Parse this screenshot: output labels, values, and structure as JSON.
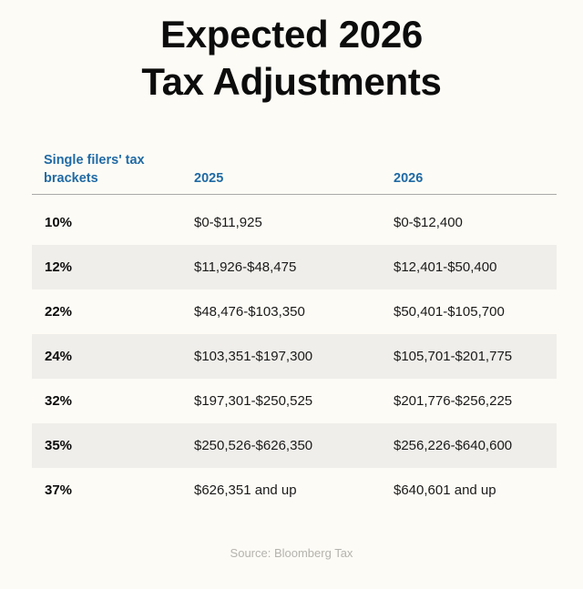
{
  "title_line1": "Expected 2026",
  "title_line2": "Tax Adjustments",
  "table": {
    "headers": [
      "Single filers' tax brackets",
      "2025",
      "2026"
    ],
    "header_color": "#1f6aa5",
    "rows": [
      {
        "rate": "10%",
        "y2025": "$0-$11,925",
        "y2026": "$0-$12,400"
      },
      {
        "rate": "12%",
        "y2025": "$11,926-$48,475",
        "y2026": "$12,401-$50,400"
      },
      {
        "rate": "22%",
        "y2025": "$48,476-$103,350",
        "y2026": "$50,401-$105,700"
      },
      {
        "rate": "24%",
        "y2025": "$103,351-$197,300",
        "y2026": "$105,701-$201,775"
      },
      {
        "rate": "32%",
        "y2025": "$197,301-$250,525",
        "y2026": "$201,776-$256,225"
      },
      {
        "rate": "35%",
        "y2025": "$250,526-$626,350",
        "y2026": "$256,226-$640,600"
      },
      {
        "rate": "37%",
        "y2025": "$626,351 and up",
        "y2026": "$640,601 and up"
      }
    ]
  },
  "source": "Source: Bloomberg Tax"
}
